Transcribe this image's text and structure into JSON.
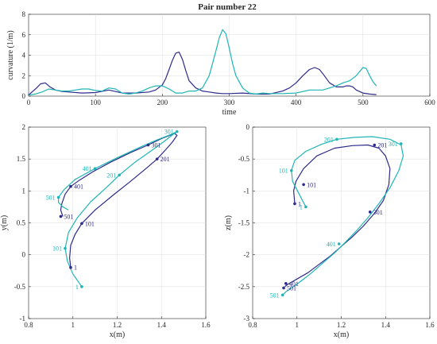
{
  "figure": {
    "title": "Pair number 22"
  },
  "chart_data": [
    {
      "type": "line",
      "title": "Pair number 22",
      "xlabel": "time",
      "ylabel": "curvature (1/m)",
      "xlim": [
        0,
        600
      ],
      "ylim": [
        0,
        8
      ],
      "xticks": [
        "0",
        "100",
        "200",
        "300",
        "400",
        "500",
        "600"
      ],
      "yticks": [
        "0",
        "2",
        "4",
        "6",
        "8"
      ],
      "grid": true,
      "series": [
        {
          "color": "#2e2a8a",
          "x": [
            0,
            5,
            12,
            18,
            25,
            32,
            40,
            50,
            60,
            80,
            100,
            120,
            140,
            160,
            180,
            190,
            200,
            205,
            210,
            215,
            220,
            225,
            230,
            235,
            240,
            250,
            260,
            270,
            280,
            290,
            300,
            320,
            340,
            360,
            380,
            390,
            400,
            410,
            420,
            428,
            435,
            440,
            450,
            460,
            470,
            475,
            480,
            485,
            490,
            500,
            510,
            520
          ],
          "y": [
            0.1,
            0.4,
            0.8,
            1.2,
            1.3,
            0.9,
            0.6,
            0.45,
            0.4,
            0.3,
            0.35,
            0.6,
            0.3,
            0.3,
            0.4,
            0.6,
            1.1,
            1.7,
            2.6,
            3.5,
            4.2,
            4.3,
            3.6,
            2.5,
            1.5,
            0.8,
            0.5,
            0.4,
            0.3,
            0.25,
            0.25,
            0.3,
            0.2,
            0.2,
            0.5,
            0.8,
            1.3,
            2.0,
            2.6,
            2.8,
            2.6,
            2.2,
            1.3,
            0.9,
            0.9,
            1.0,
            1.0,
            0.9,
            0.6,
            0.3,
            0.2,
            0.15
          ]
        },
        {
          "color": "#1fb5b5",
          "x": [
            0,
            10,
            20,
            30,
            40,
            50,
            60,
            70,
            80,
            90,
            100,
            110,
            120,
            130,
            140,
            150,
            160,
            170,
            180,
            190,
            200,
            210,
            220,
            230,
            240,
            250,
            260,
            270,
            275,
            280,
            285,
            290,
            295,
            300,
            305,
            310,
            320,
            330,
            340,
            350,
            360,
            380,
            400,
            420,
            440,
            460,
            470,
            480,
            490,
            495,
            500,
            505,
            510,
            515,
            520
          ],
          "y": [
            0.1,
            0.2,
            0.4,
            0.7,
            0.6,
            0.5,
            0.5,
            0.6,
            0.7,
            0.7,
            0.55,
            0.5,
            0.8,
            0.7,
            0.3,
            0.2,
            0.3,
            0.5,
            0.8,
            1.0,
            1.0,
            0.7,
            0.3,
            0.3,
            0.5,
            0.5,
            0.8,
            2.0,
            3.2,
            4.4,
            5.7,
            6.5,
            6.1,
            4.7,
            3.2,
            2.0,
            0.8,
            0.3,
            0.2,
            0.3,
            0.25,
            0.25,
            0.3,
            0.6,
            0.6,
            1.0,
            1.3,
            1.5,
            2.0,
            2.4,
            2.8,
            2.7,
            2.0,
            1.4,
            1.0
          ]
        }
      ]
    },
    {
      "type": "line",
      "xlabel": "x(m)",
      "ylabel": "y(m)",
      "xlim": [
        0.8,
        1.6
      ],
      "ylim": [
        -1,
        2
      ],
      "xticks": [
        "0.8",
        "1",
        "1.2",
        "1.4",
        "1.6"
      ],
      "yticks": [
        "-1",
        "-0.5",
        "0",
        "0.5",
        "1",
        "1.5",
        "2"
      ],
      "grid": true,
      "series": [
        {
          "color": "#2e2a8a",
          "x": [
            0.99,
            0.985,
            0.99,
            1.01,
            1.04,
            1.1,
            1.18,
            1.26,
            1.33,
            1.38,
            1.42,
            1.45,
            1.47,
            1.46,
            1.4,
            1.34,
            1.26,
            1.17,
            1.09,
            1.03,
            0.99,
            0.965,
            0.95,
            0.945,
            0.955
          ],
          "y": [
            -0.2,
            -0.05,
            0.15,
            0.32,
            0.49,
            0.7,
            0.93,
            1.15,
            1.35,
            1.5,
            1.65,
            1.77,
            1.87,
            1.9,
            1.82,
            1.72,
            1.6,
            1.45,
            1.3,
            1.17,
            1.07,
            0.95,
            0.8,
            0.7,
            0.6
          ]
        },
        {
          "color": "#1fb5b5",
          "x": [
            1.04,
            1.0,
            0.975,
            0.965,
            0.98,
            1.02,
            1.08,
            1.15,
            1.21,
            1.28,
            1.35,
            1.41,
            1.45,
            1.47,
            1.44,
            1.38,
            1.3,
            1.2,
            1.1,
            1.01,
            0.96,
            0.935,
            0.935,
            0.955,
            0.98
          ],
          "y": [
            -0.5,
            -0.3,
            -0.1,
            0.1,
            0.35,
            0.58,
            0.83,
            1.05,
            1.25,
            1.45,
            1.62,
            1.77,
            1.88,
            1.93,
            1.88,
            1.8,
            1.68,
            1.52,
            1.35,
            1.18,
            1.02,
            0.9,
            0.82,
            0.75,
            0.7
          ]
        }
      ],
      "annotations": [
        {
          "text": "1",
          "x": 0.99,
          "y": -0.2,
          "series": 0
        },
        {
          "text": "101",
          "x": 1.04,
          "y": 0.49,
          "series": 0
        },
        {
          "text": "201",
          "x": 1.38,
          "y": 1.5,
          "series": 0
        },
        {
          "text": "301",
          "x": 1.34,
          "y": 1.72,
          "series": 0
        },
        {
          "text": "401",
          "x": 0.99,
          "y": 1.07,
          "series": 0
        },
        {
          "text": "501",
          "x": 0.945,
          "y": 0.6,
          "series": 0
        },
        {
          "text": "1",
          "x": 1.04,
          "y": -0.5,
          "series": 1
        },
        {
          "text": "101",
          "x": 0.965,
          "y": 0.1,
          "series": 1
        },
        {
          "text": "201",
          "x": 1.21,
          "y": 1.25,
          "series": 1
        },
        {
          "text": "301",
          "x": 1.47,
          "y": 1.93,
          "series": 1
        },
        {
          "text": "401",
          "x": 1.1,
          "y": 1.35,
          "series": 1
        },
        {
          "text": "501",
          "x": 0.935,
          "y": 0.9,
          "series": 1
        }
      ]
    },
    {
      "type": "line",
      "xlabel": "x(m)",
      "ylabel": "z(m)",
      "xlim": [
        0.8,
        1.6
      ],
      "ylim": [
        -3,
        0
      ],
      "xticks": [
        "0.8",
        "1",
        "1.2",
        "1.4",
        "1.6"
      ],
      "yticks": [
        "-3",
        "-2.5",
        "-2",
        "-1.5",
        "-1",
        "-0.5",
        "0"
      ],
      "grid": true,
      "series": [
        {
          "color": "#2e2a8a",
          "x": [
            0.99,
            0.985,
            0.995,
            1.03,
            1.09,
            1.17,
            1.25,
            1.32,
            1.37,
            1.4,
            1.42,
            1.415,
            1.39,
            1.35,
            1.3,
            1.25,
            1.2,
            1.15,
            1.1,
            1.05,
            1.0,
            0.96,
            0.945
          ],
          "y": [
            -1.2,
            -1.0,
            -0.85,
            -0.65,
            -0.45,
            -0.33,
            -0.29,
            -0.28,
            -0.33,
            -0.45,
            -0.65,
            -0.9,
            -1.15,
            -1.35,
            -1.55,
            -1.72,
            -1.87,
            -2.02,
            -2.15,
            -2.28,
            -2.38,
            -2.46,
            -2.5
          ]
        },
        {
          "color": "#1fb5b5",
          "x": [
            1.04,
            1.01,
            0.98,
            0.975,
            0.99,
            1.04,
            1.11,
            1.18,
            1.26,
            1.34,
            1.42,
            1.47,
            1.48,
            1.46,
            1.42,
            1.37,
            1.32,
            1.27,
            1.22,
            1.17,
            1.12,
            1.06,
            1.0,
            0.95,
            0.935
          ],
          "y": [
            -1.25,
            -1.05,
            -0.85,
            -0.68,
            -0.52,
            -0.38,
            -0.27,
            -0.19,
            -0.16,
            -0.15,
            -0.19,
            -0.28,
            -0.45,
            -0.68,
            -0.95,
            -1.2,
            -1.42,
            -1.62,
            -1.8,
            -1.97,
            -2.12,
            -2.3,
            -2.46,
            -2.58,
            -2.63
          ]
        }
      ],
      "annotations": [
        {
          "text": "1",
          "x": 0.99,
          "y": -1.2,
          "series": 0
        },
        {
          "text": "101",
          "x": 1.03,
          "y": -0.9,
          "series": 0
        },
        {
          "text": "201",
          "x": 1.35,
          "y": -0.28,
          "series": 0
        },
        {
          "text": "301",
          "x": 1.33,
          "y": -1.33,
          "series": 0
        },
        {
          "text": "401",
          "x": 0.95,
          "y": -2.45,
          "series": 0
        },
        {
          "text": "501",
          "x": 0.94,
          "y": -2.52,
          "series": 0
        },
        {
          "text": "1",
          "x": 1.04,
          "y": -1.25,
          "series": 1
        },
        {
          "text": "101",
          "x": 0.975,
          "y": -0.68,
          "series": 1
        },
        {
          "text": "201",
          "x": 1.18,
          "y": -0.19,
          "series": 1
        },
        {
          "text": "301",
          "x": 1.47,
          "y": -0.26,
          "series": 1
        },
        {
          "text": "401",
          "x": 1.19,
          "y": -1.83,
          "series": 1
        },
        {
          "text": "501",
          "x": 0.935,
          "y": -2.63,
          "series": 1
        }
      ]
    }
  ]
}
